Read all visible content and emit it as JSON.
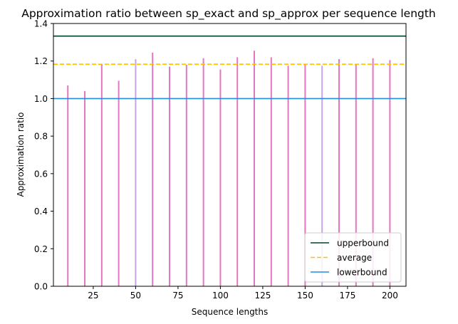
{
  "chart_data": {
    "type": "bar",
    "title": "Approximation ratio between sp_exact and sp_approx per sequence length",
    "xlabel": "Sequence lengths",
    "ylabel": "Approximation ratio",
    "xlim": [
      1.5,
      209.5
    ],
    "ylim": [
      0,
      1.4
    ],
    "xticks": [
      25,
      50,
      75,
      100,
      125,
      150,
      175,
      200
    ],
    "yticks": [
      0.0,
      0.2,
      0.4,
      0.6,
      0.8,
      1.0,
      1.2,
      1.4
    ],
    "x": [
      10,
      20,
      30,
      40,
      50,
      60,
      70,
      80,
      90,
      100,
      110,
      120,
      130,
      140,
      150,
      160,
      170,
      180,
      190,
      200
    ],
    "values": [
      1.07,
      1.04,
      1.18,
      1.095,
      1.21,
      1.245,
      1.17,
      1.18,
      1.215,
      1.155,
      1.22,
      1.255,
      1.22,
      1.175,
      1.18,
      1.175,
      1.21,
      1.18,
      1.215,
      1.205
    ],
    "bar_colors": [
      "#e377c2",
      "#e377c2",
      "#e377c2",
      "#e377c2",
      "#c7a5e8",
      "#e377c2",
      "#e377c2",
      "#e377c2",
      "#e377c2",
      "#e377c2",
      "#e377c2",
      "#e377c2",
      "#e377c2",
      "#e377c2",
      "#e377c2",
      "#c7a5e8",
      "#e377c2",
      "#e377c2",
      "#e377c2",
      "#e377c2"
    ],
    "reference_lines": [
      {
        "name": "upperbound",
        "value": 1.333,
        "color": "#004225",
        "style": "solid"
      },
      {
        "name": "average",
        "value": 1.183,
        "color": "#ffc000",
        "style": "dashed"
      },
      {
        "name": "lowerbound",
        "value": 1.0,
        "color": "#1f8fde",
        "style": "solid"
      }
    ],
    "legend_position": "bottom-right",
    "grid": false
  }
}
